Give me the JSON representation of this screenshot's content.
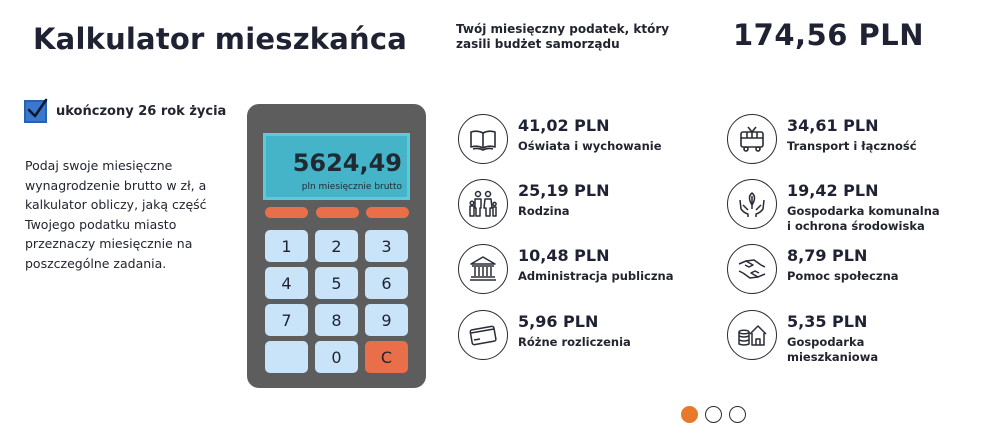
{
  "header": {
    "title": "Kalkulator mieszkańca",
    "total_label": "Twój miesięczny podatek, który zasili budżet samorządu",
    "total_value": "174,56 PLN"
  },
  "age_checkbox": {
    "label": "ukończony 26 rok życia",
    "checked": true
  },
  "description": "Podaj swoje miesięczne wynagrodzenie brutto w zł, a kalkulator obliczy, jaką część Twojego podatku miasto przeznaczy miesięcznie na poszczególne zadania.",
  "calculator": {
    "display_value": "5624,49",
    "display_unit": "pln miesięcznie brutto",
    "keys": [
      "1",
      "2",
      "3",
      "4",
      "5",
      "6",
      "7",
      "8",
      "9",
      "",
      "0",
      "C"
    ]
  },
  "categories": [
    {
      "amount": "41,02 PLN",
      "name": "Oświata i wychowanie",
      "icon": "book-icon"
    },
    {
      "amount": "34,61 PLN",
      "name": "Transport i łączność",
      "icon": "trolleybus-icon"
    },
    {
      "amount": "25,19 PLN",
      "name": "Rodzina",
      "icon": "family-icon"
    },
    {
      "amount": "19,42 PLN",
      "name": "Gospodarka komunalna i ochrona środowiska",
      "icon": "hands-leaf-icon"
    },
    {
      "amount": "10,48 PLN",
      "name": "Administracja publiczna",
      "icon": "building-icon"
    },
    {
      "amount": "8,79 PLN",
      "name": "Pomoc społeczna",
      "icon": "helping-hands-icon"
    },
    {
      "amount": "5,96 PLN",
      "name": "Różne rozliczenia",
      "icon": "card-icon"
    },
    {
      "amount": "5,35 PLN",
      "name": "Gospodarka mieszkaniowa",
      "icon": "house-coins-icon"
    }
  ],
  "pagination": {
    "total": 3,
    "active": 1
  },
  "colors": {
    "accent_orange": "#e96f4a",
    "screen": "#45b3c8",
    "key": "#c9e4f8",
    "checkbox": "#3a78d0",
    "dot_active": "#e8782c"
  }
}
